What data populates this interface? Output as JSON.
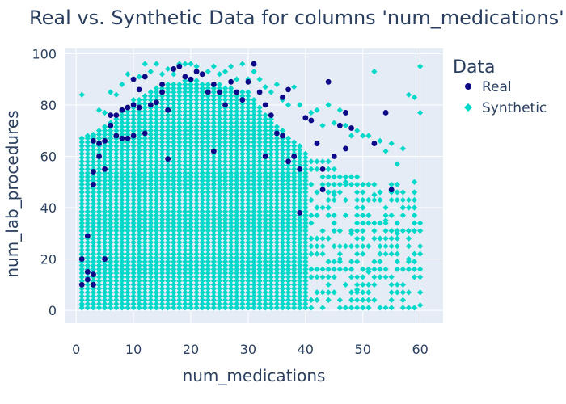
{
  "chart_data": {
    "type": "scatter",
    "title": "Real vs. Synthetic Data for columns 'num_medications'",
    "xlabel": "num_medications",
    "ylabel": "num_lab_procedures",
    "xlim": [
      -2,
      64
    ],
    "ylim": [
      -5,
      102
    ],
    "xticks": [
      0,
      10,
      20,
      30,
      40,
      50,
      60
    ],
    "yticks": [
      0,
      20,
      40,
      60,
      80,
      100
    ],
    "grid": true,
    "legend": {
      "title": "Data",
      "placement": "right"
    },
    "series": [
      {
        "name": "Real",
        "marker": "circle",
        "color": "#0d0887",
        "points": [
          [
            1,
            10
          ],
          [
            1,
            20
          ],
          [
            2,
            12
          ],
          [
            2,
            15
          ],
          [
            3,
            10
          ],
          [
            3,
            14
          ],
          [
            3,
            49
          ],
          [
            3,
            54
          ],
          [
            3,
            66
          ],
          [
            4,
            60
          ],
          [
            4,
            65
          ],
          [
            5,
            66
          ],
          [
            5,
            55
          ],
          [
            5,
            20
          ],
          [
            6,
            72
          ],
          [
            6,
            76
          ],
          [
            7,
            76
          ],
          [
            7,
            68
          ],
          [
            8,
            78
          ],
          [
            8,
            67
          ],
          [
            9,
            79
          ],
          [
            10,
            80
          ],
          [
            10,
            90
          ],
          [
            10,
            68
          ],
          [
            11,
            79
          ],
          [
            11,
            86
          ],
          [
            12,
            91
          ],
          [
            12,
            69
          ],
          [
            13,
            80
          ],
          [
            14,
            81
          ],
          [
            15,
            88
          ],
          [
            15,
            85
          ],
          [
            16,
            78
          ],
          [
            17,
            94
          ],
          [
            18,
            95
          ],
          [
            19,
            91
          ],
          [
            20,
            90
          ],
          [
            21,
            93
          ],
          [
            22,
            92
          ],
          [
            23,
            85
          ],
          [
            24,
            88
          ],
          [
            25,
            85
          ],
          [
            26,
            80
          ],
          [
            27,
            89
          ],
          [
            28,
            85
          ],
          [
            29,
            82
          ],
          [
            30,
            89
          ],
          [
            31,
            96
          ],
          [
            32,
            85
          ],
          [
            33,
            80
          ],
          [
            34,
            76
          ],
          [
            35,
            69
          ],
          [
            36,
            68
          ],
          [
            36,
            83
          ],
          [
            37,
            86
          ],
          [
            38,
            60
          ],
          [
            39,
            55
          ],
          [
            39,
            38
          ],
          [
            40,
            75
          ],
          [
            41,
            74
          ],
          [
            42,
            65
          ],
          [
            43,
            55
          ],
          [
            43,
            47
          ],
          [
            44,
            89
          ],
          [
            45,
            60
          ],
          [
            47,
            77
          ],
          [
            47,
            63
          ],
          [
            48,
            71
          ],
          [
            52,
            65
          ],
          [
            54,
            77
          ],
          [
            55,
            47
          ],
          [
            37,
            58
          ],
          [
            33,
            60
          ],
          [
            9,
            67
          ],
          [
            2,
            29
          ],
          [
            16,
            59
          ],
          [
            24,
            62
          ],
          [
            46,
            72
          ]
        ]
      },
      {
        "name": "Synthetic",
        "marker": "diamond",
        "color": "#00d9c9",
        "points": [
          [
            1,
            84
          ],
          [
            1,
            67
          ],
          [
            1,
            2
          ],
          [
            2,
            68
          ],
          [
            3,
            68
          ],
          [
            4,
            78
          ],
          [
            5,
            77
          ],
          [
            6,
            85
          ],
          [
            7,
            84
          ],
          [
            8,
            88
          ],
          [
            9,
            92
          ],
          [
            10,
            90
          ],
          [
            11,
            91
          ],
          [
            12,
            96
          ],
          [
            13,
            93
          ],
          [
            14,
            96
          ],
          [
            15,
            92
          ],
          [
            16,
            94
          ],
          [
            17,
            92
          ],
          [
            18,
            96
          ],
          [
            19,
            96
          ],
          [
            20,
            96
          ],
          [
            21,
            95
          ],
          [
            22,
            92
          ],
          [
            23,
            93
          ],
          [
            24,
            95
          ],
          [
            25,
            92
          ],
          [
            26,
            93
          ],
          [
            27,
            95
          ],
          [
            28,
            90
          ],
          [
            29,
            96
          ],
          [
            30,
            90
          ],
          [
            31,
            93
          ],
          [
            32,
            90
          ],
          [
            33,
            87
          ],
          [
            34,
            85
          ],
          [
            35,
            88
          ],
          [
            36,
            82
          ],
          [
            37,
            80
          ],
          [
            38,
            87
          ],
          [
            39,
            80
          ],
          [
            40,
            75
          ],
          [
            41,
            77
          ],
          [
            42,
            78
          ],
          [
            43,
            72
          ],
          [
            44,
            80
          ],
          [
            45,
            73
          ],
          [
            46,
            78
          ],
          [
            47,
            72
          ],
          [
            48,
            68
          ],
          [
            49,
            70
          ],
          [
            50,
            68
          ],
          [
            51,
            68
          ],
          [
            52,
            93
          ],
          [
            53,
            66
          ],
          [
            54,
            62
          ],
          [
            55,
            65
          ],
          [
            56,
            57
          ],
          [
            57,
            63
          ],
          [
            58,
            84
          ],
          [
            59,
            83
          ],
          [
            60,
            95
          ],
          [
            60,
            77
          ],
          [
            60,
            2
          ],
          [
            59,
            50
          ],
          [
            58,
            20
          ],
          [
            57,
            40
          ],
          [
            56,
            30
          ],
          [
            55,
            10
          ],
          [
            54,
            35
          ],
          [
            53,
            25
          ],
          [
            52,
            45
          ],
          [
            51,
            15
          ],
          [
            50,
            40
          ],
          [
            49,
            8
          ],
          [
            48,
            30
          ],
          [
            47,
            50
          ],
          [
            46,
            20
          ],
          [
            45,
            45
          ]
        ]
      }
    ]
  }
}
